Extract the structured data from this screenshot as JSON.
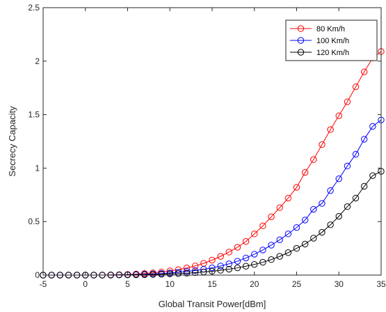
{
  "chart_data": {
    "type": "line",
    "title": "",
    "xlabel": "Global Transit Power[dBm]",
    "ylabel": "Secrecy Capacity",
    "xlim": [
      -5,
      35
    ],
    "ylim": [
      0,
      2.5
    ],
    "x_ticks": [
      -5,
      0,
      5,
      10,
      15,
      20,
      25,
      30,
      35
    ],
    "y_ticks": [
      0,
      0.5,
      1,
      1.5,
      2,
      2.5
    ],
    "x_tick_labels": [
      "-5",
      "0",
      "5",
      "10",
      "15",
      "20",
      "25",
      "30",
      "35"
    ],
    "y_tick_labels": [
      "0",
      "0.5",
      "1",
      "1.5",
      "2",
      "2.5"
    ],
    "grid": false,
    "legend_position": "top-right",
    "x": [
      -5,
      -4,
      -3,
      -2,
      -1,
      0,
      1,
      2,
      3,
      4,
      5,
      6,
      7,
      8,
      9,
      10,
      11,
      12,
      13,
      14,
      15,
      16,
      17,
      18,
      19,
      20,
      21,
      22,
      23,
      24,
      25,
      26,
      27,
      28,
      29,
      30,
      31,
      32,
      33,
      34,
      35
    ],
    "series": [
      {
        "name": "80 Km/h",
        "color": "#ff0000",
        "marker": "circle",
        "values": [
          0,
          0,
          0,
          0,
          0,
          0,
          0,
          0,
          0.002,
          0.004,
          0.006,
          0.01,
          0.015,
          0.021,
          0.029,
          0.039,
          0.051,
          0.067,
          0.086,
          0.11,
          0.14,
          0.175,
          0.215,
          0.26,
          0.315,
          0.385,
          0.46,
          0.545,
          0.63,
          0.72,
          0.82,
          0.96,
          1.08,
          1.22,
          1.36,
          1.49,
          1.62,
          1.76,
          1.9,
          2.03,
          2.09
        ]
      },
      {
        "name": "100 Km/h",
        "color": "#0000ff",
        "marker": "circle",
        "values": [
          0,
          0,
          0,
          0,
          0,
          0,
          0,
          0,
          0.001,
          0.002,
          0.004,
          0.006,
          0.008,
          0.011,
          0.015,
          0.02,
          0.026,
          0.034,
          0.043,
          0.054,
          0.068,
          0.085,
          0.105,
          0.13,
          0.16,
          0.195,
          0.235,
          0.28,
          0.33,
          0.385,
          0.445,
          0.515,
          0.615,
          0.67,
          0.79,
          0.9,
          1.02,
          1.13,
          1.27,
          1.39,
          1.45
        ]
      },
      {
        "name": "120 Km/h",
        "color": "#000000",
        "marker": "circle",
        "values": [
          0,
          0,
          0,
          0,
          0,
          0,
          0,
          0,
          0,
          0.001,
          0.002,
          0.003,
          0.004,
          0.006,
          0.008,
          0.011,
          0.014,
          0.018,
          0.023,
          0.029,
          0.036,
          0.045,
          0.055,
          0.068,
          0.083,
          0.1,
          0.12,
          0.145,
          0.175,
          0.21,
          0.25,
          0.29,
          0.345,
          0.4,
          0.47,
          0.55,
          0.64,
          0.72,
          0.83,
          0.93,
          0.97
        ]
      }
    ]
  }
}
